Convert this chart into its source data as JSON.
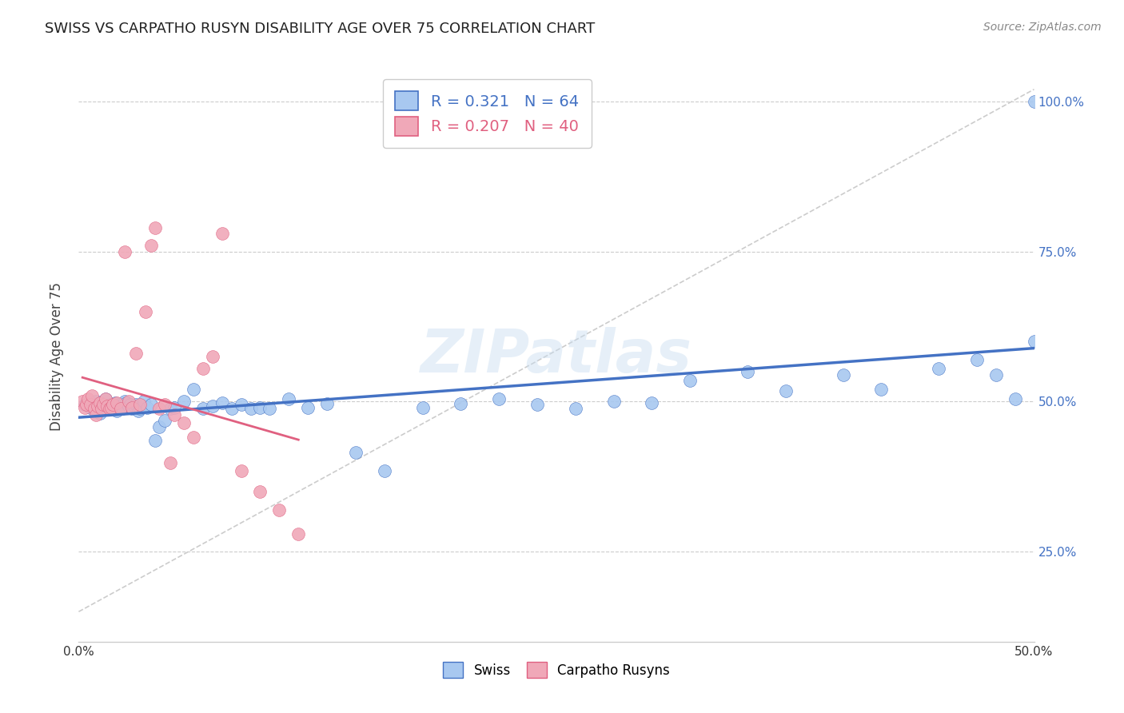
{
  "title": "SWISS VS CARPATHO RUSYN DISABILITY AGE OVER 75 CORRELATION CHART",
  "source": "Source: ZipAtlas.com",
  "ylabel": "Disability Age Over 75",
  "xlim": [
    0.0,
    0.5
  ],
  "ylim": [
    0.1,
    1.05
  ],
  "xtick_labels": [
    "0.0%",
    "",
    "",
    "",
    "",
    "",
    "",
    "",
    "",
    "",
    "50.0%"
  ],
  "xtick_vals": [
    0.0,
    0.05,
    0.1,
    0.15,
    0.2,
    0.25,
    0.3,
    0.35,
    0.4,
    0.45,
    0.5
  ],
  "ytick_labels": [
    "25.0%",
    "50.0%",
    "75.0%",
    "100.0%"
  ],
  "ytick_vals": [
    0.25,
    0.5,
    0.75,
    1.0
  ],
  "swiss_color": "#a8c8f0",
  "carpatho_color": "#f0a8b8",
  "swiss_line_color": "#4472c4",
  "carpatho_line_color": "#e06080",
  "swiss_R": 0.321,
  "swiss_N": 64,
  "carpatho_R": 0.207,
  "carpatho_N": 40,
  "watermark": "ZIPatlas",
  "ref_line_color": "#cccccc",
  "swiss_x": [
    0.003,
    0.006,
    0.009,
    0.011,
    0.013,
    0.014,
    0.016,
    0.017,
    0.018,
    0.019,
    0.02,
    0.021,
    0.022,
    0.023,
    0.024,
    0.025,
    0.026,
    0.027,
    0.028,
    0.029,
    0.03,
    0.031,
    0.032,
    0.034,
    0.036,
    0.038,
    0.04,
    0.042,
    0.045,
    0.048,
    0.05,
    0.055,
    0.06,
    0.065,
    0.07,
    0.075,
    0.08,
    0.085,
    0.09,
    0.095,
    0.1,
    0.11,
    0.12,
    0.13,
    0.145,
    0.16,
    0.18,
    0.2,
    0.22,
    0.24,
    0.26,
    0.28,
    0.3,
    0.32,
    0.35,
    0.37,
    0.4,
    0.42,
    0.45,
    0.47,
    0.48,
    0.49,
    0.5,
    0.5
  ],
  "swiss_y": [
    0.495,
    0.49,
    0.5,
    0.48,
    0.49,
    0.505,
    0.495,
    0.488,
    0.492,
    0.498,
    0.485,
    0.495,
    0.492,
    0.488,
    0.5,
    0.498,
    0.492,
    0.495,
    0.488,
    0.492,
    0.495,
    0.485,
    0.488,
    0.5,
    0.49,
    0.495,
    0.435,
    0.458,
    0.468,
    0.488,
    0.49,
    0.5,
    0.52,
    0.488,
    0.492,
    0.498,
    0.488,
    0.495,
    0.488,
    0.49,
    0.488,
    0.505,
    0.49,
    0.497,
    0.415,
    0.385,
    0.49,
    0.497,
    0.505,
    0.495,
    0.488,
    0.5,
    0.498,
    0.535,
    0.55,
    0.518,
    0.545,
    0.52,
    0.555,
    0.57,
    0.545,
    0.505,
    0.6,
    1.0
  ],
  "carpatho_x": [
    0.002,
    0.003,
    0.004,
    0.005,
    0.006,
    0.007,
    0.008,
    0.009,
    0.01,
    0.011,
    0.012,
    0.013,
    0.014,
    0.015,
    0.016,
    0.017,
    0.018,
    0.02,
    0.022,
    0.024,
    0.026,
    0.028,
    0.03,
    0.032,
    0.035,
    0.038,
    0.04,
    0.042,
    0.045,
    0.048,
    0.05,
    0.055,
    0.06,
    0.065,
    0.07,
    0.075,
    0.085,
    0.095,
    0.105,
    0.115
  ],
  "carpatho_y": [
    0.5,
    0.49,
    0.495,
    0.505,
    0.495,
    0.51,
    0.488,
    0.478,
    0.492,
    0.498,
    0.488,
    0.495,
    0.505,
    0.492,
    0.488,
    0.49,
    0.495,
    0.498,
    0.488,
    0.75,
    0.5,
    0.49,
    0.58,
    0.495,
    0.65,
    0.76,
    0.79,
    0.488,
    0.495,
    0.398,
    0.478,
    0.465,
    0.44,
    0.555,
    0.575,
    0.78,
    0.385,
    0.35,
    0.32,
    0.28
  ]
}
